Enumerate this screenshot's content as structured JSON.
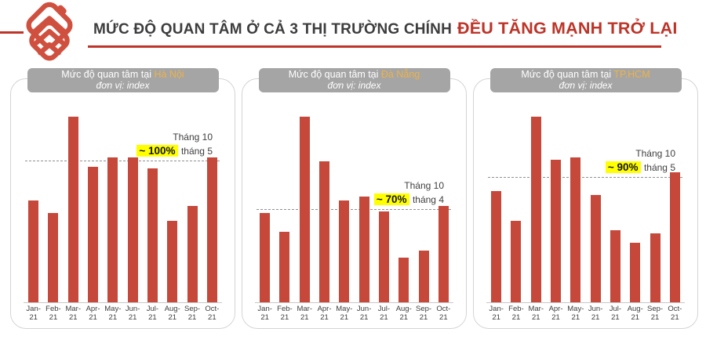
{
  "header": {
    "title_dark": "MỨC ĐỘ QUAN TÂM Ở CẢ 3 THỊ TRƯỜNG CHÍNH",
    "title_red": "ĐỀU TĂNG MẠNH TRỞ LẠI",
    "logo_icon": "nested-chevron-house-icon"
  },
  "colors": {
    "bar": "#c5483a",
    "accent_red": "#bd3428",
    "logo_red": "#d0503f",
    "badge_bg": "#a5a5a5",
    "city_text": "#ecb24a",
    "highlight": "#ffff00",
    "dash_line": "#909090"
  },
  "chart_data": [
    {
      "type": "bar",
      "title_prefix": "Mức độ quan tâm tại",
      "city": "Hà Nội",
      "subtitle": "đơn vị: index",
      "categories": [
        "Jan-21",
        "Feb-21",
        "Mar-21",
        "Apr-21",
        "May-21",
        "Jun-21",
        "Jul-21",
        "Aug-21",
        "Sep-21",
        "Oct-21"
      ],
      "values": [
        55,
        48,
        100,
        73,
        78,
        78,
        72,
        44,
        52,
        78
      ],
      "ylim": [
        0,
        100
      ],
      "grid": false,
      "reference_line": {
        "value": 76,
        "style": "dashed"
      },
      "annotation": {
        "line1": "Tháng 10",
        "highlight": "~ 100%",
        "suffix": "tháng 5"
      }
    },
    {
      "type": "bar",
      "title_prefix": "Mức độ quan tâm tại",
      "city": "Đà Nẵng",
      "subtitle": "đơn vị: index",
      "categories": [
        "Jan-21",
        "Feb-21",
        "Mar-21",
        "Apr-21",
        "May-21",
        "Jun-21",
        "Jul-21",
        "Aug-21",
        "Sep-21",
        "Oct-21"
      ],
      "values": [
        48,
        38,
        100,
        76,
        55,
        57,
        49,
        24,
        28,
        52
      ],
      "ylim": [
        0,
        100
      ],
      "grid": false,
      "reference_line": {
        "value": 50,
        "style": "dashed"
      },
      "annotation": {
        "line1": "Tháng 10",
        "highlight": "~ 70%",
        "suffix": "tháng 4"
      }
    },
    {
      "type": "bar",
      "title_prefix": "Mức độ quan tâm tại",
      "city": "TP.HCM",
      "subtitle": "đơn vị: index",
      "categories": [
        "Jan-21",
        "Feb-21",
        "Mar-21",
        "Apr-21",
        "May-21",
        "Jun-21",
        "Jul-21",
        "Aug-21",
        "Sep-21",
        "Oct-21"
      ],
      "values": [
        60,
        44,
        100,
        77,
        78,
        58,
        39,
        32,
        37,
        70
      ],
      "ylim": [
        0,
        100
      ],
      "grid": false,
      "reference_line": {
        "value": 67,
        "style": "dashed"
      },
      "annotation": {
        "line1": "Tháng 10",
        "highlight": "~ 90%",
        "suffix": "tháng 5"
      }
    }
  ]
}
